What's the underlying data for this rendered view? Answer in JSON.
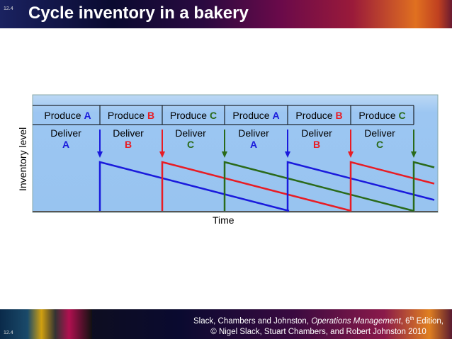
{
  "slide_number": "12.4",
  "title": "Cycle inventory in a bakery",
  "y_axis_label": "Inventory level",
  "x_axis_label": "Time",
  "colors": {
    "A": "#1a1adc",
    "B": "#e81c24",
    "C": "#2a6a1a"
  },
  "produce_label": "Produce",
  "deliver_label": "Deliver",
  "sequence": [
    "A",
    "B",
    "C",
    "A",
    "B",
    "C"
  ],
  "footer": {
    "line1_prefix": "Slack, Chambers and Johnston, ",
    "line1_book": "Operations Management",
    "line1_suffix_a": ", 6",
    "line1_sup": "th",
    "line1_suffix_b": " Edition,",
    "line2": "© Nigel Slack, Stuart Chambers, and Robert Johnston 2010"
  }
}
